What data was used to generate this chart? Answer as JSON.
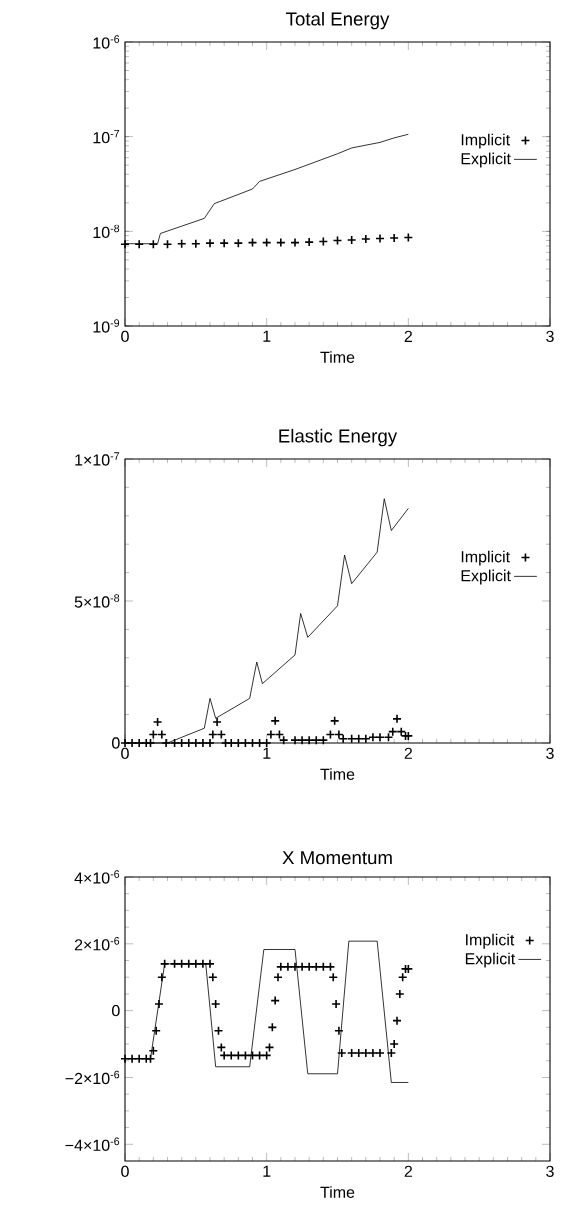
{
  "chart_data": [
    {
      "type": "line",
      "title": "Total Energy",
      "xlabel": "Time",
      "log": "y",
      "legend": "right",
      "grid": false,
      "xlim": [
        0,
        3
      ],
      "xticks": [
        0,
        1,
        2,
        3
      ],
      "ylim": [
        1e-09,
        1e-06
      ],
      "yticks": [
        {
          "value": 1e-09,
          "label": "10$^{-9}$"
        },
        {
          "value": 1e-08,
          "label": "10$^{-8}$"
        },
        {
          "value": 1e-07,
          "label": "10$^{-7}$"
        },
        {
          "value": 1e-06,
          "label": "10$^{-6}$"
        }
      ],
      "series": [
        {
          "name": "Implicit",
          "type": "scatter",
          "marker": "cross",
          "color": "#000000",
          "x": [
            0,
            0.1,
            0.2,
            0.3,
            0.4,
            0.5,
            0.6,
            0.7,
            0.8,
            0.9,
            1.0,
            1.1,
            1.2,
            1.3,
            1.4,
            1.5,
            1.6,
            1.7,
            1.8,
            1.9,
            2.0
          ],
          "values": [
            7.3e-09,
            7.3e-09,
            7.3e-09,
            7.3e-09,
            7.4e-09,
            7.4e-09,
            7.5e-09,
            7.5e-09,
            7.5e-09,
            7.6e-09,
            7.6e-09,
            7.6e-09,
            7.6e-09,
            7.7e-09,
            7.8e-09,
            8e-09,
            8.1e-09,
            8.3e-09,
            8.4e-09,
            8.5e-09,
            8.6e-09
          ]
        },
        {
          "name": "Explicit",
          "type": "line",
          "marker": "none",
          "line_style": "solid",
          "color": "#000000",
          "x": [
            0,
            0.23,
            0.25,
            0.56,
            0.63,
            0.9,
            0.95,
            1.2,
            1.5,
            1.6,
            1.8,
            1.9,
            2.0
          ],
          "values": [
            7.4e-09,
            7.4e-09,
            9.5e-09,
            1.37e-08,
            1.96e-08,
            2.8e-08,
            3.37e-08,
            4.5e-08,
            6.6e-08,
            7.6e-08,
            8.7e-08,
            9.7e-08,
            1.06e-07
          ]
        }
      ]
    },
    {
      "type": "line",
      "title": "Elastic Energy",
      "xlabel": "Time",
      "legend": "right",
      "grid": false,
      "xlim": [
        0,
        3
      ],
      "xticks": [
        0,
        1,
        2,
        3
      ],
      "ylim": [
        0,
        1e-07
      ],
      "yticks": [
        {
          "value": 0,
          "label": "0"
        },
        {
          "value": 5e-08,
          "label": "5×10$^{-8}$"
        },
        {
          "value": 1e-07,
          "label": "1×10$^{-7}$"
        }
      ],
      "series": [
        {
          "name": "Implicit",
          "type": "scatter",
          "marker": "cross",
          "color": "#000000",
          "x": [
            0,
            0.05,
            0.1,
            0.15,
            0.18,
            0.2,
            0.23,
            0.26,
            0.29,
            0.35,
            0.4,
            0.45,
            0.5,
            0.55,
            0.6,
            0.62,
            0.65,
            0.68,
            0.71,
            0.75,
            0.8,
            0.85,
            0.9,
            0.95,
            1.0,
            1.03,
            1.06,
            1.09,
            1.12,
            1.2,
            1.25,
            1.3,
            1.35,
            1.4,
            1.45,
            1.48,
            1.51,
            1.54,
            1.6,
            1.65,
            1.7,
            1.75,
            1.8,
            1.86,
            1.89,
            1.92,
            1.95,
            1.98,
            2.0
          ],
          "values": [
            0,
            0,
            0,
            0,
            0,
            3e-09,
            7.4e-09,
            3e-09,
            0,
            0,
            0,
            0,
            0,
            0,
            0,
            3e-09,
            7.4e-09,
            3e-09,
            0,
            0,
            0,
            0,
            0,
            0,
            0,
            3e-09,
            7.8e-09,
            3e-09,
            1e-09,
            1e-09,
            1e-09,
            1e-09,
            1e-09,
            1e-09,
            3e-09,
            7.8e-09,
            3e-09,
            1.5e-09,
            1.5e-09,
            1.5e-09,
            1.5e-09,
            2e-09,
            2e-09,
            2e-09,
            4e-09,
            8.5e-09,
            4e-09,
            2.5e-09,
            2.5e-09
          ]
        },
        {
          "name": "Explicit",
          "type": "line",
          "marker": "none",
          "line_style": "solid",
          "color": "#000000",
          "x": [
            0,
            0.3,
            0.56,
            0.6,
            0.64,
            0.88,
            0.93,
            0.97,
            1.2,
            1.24,
            1.29,
            1.5,
            1.55,
            1.6,
            1.78,
            1.83,
            1.88,
            2.0
          ],
          "values": [
            0,
            0,
            5.2e-09,
            1.57e-08,
            8.7e-09,
            1.57e-08,
            2.85e-08,
            2.09e-08,
            3.1e-08,
            4.56e-08,
            3.72e-08,
            4.83e-08,
            6.62e-08,
            5.61e-08,
            6.72e-08,
            8.6e-08,
            7.48e-08,
            8.26e-08
          ]
        }
      ]
    },
    {
      "type": "line",
      "title": "X Momentum",
      "xlabel": "Time",
      "legend": "top right",
      "grid": false,
      "xlim": [
        0,
        3
      ],
      "xticks": [
        0,
        1,
        2,
        3
      ],
      "ylim": [
        -4.5e-06,
        4e-06
      ],
      "yticks": [
        {
          "value": -4e-06,
          "label": "−4×10$^{-6}$"
        },
        {
          "value": -2e-06,
          "label": "−2×10$^{-6}$"
        },
        {
          "value": 0,
          "label": "0"
        },
        {
          "value": 2e-06,
          "label": "2×10$^{-6}$"
        },
        {
          "value": 4e-06,
          "label": "4×10$^{-6}$"
        }
      ],
      "series": [
        {
          "name": "Implicit",
          "type": "scatter",
          "marker": "cross",
          "color": "#000000",
          "x": [
            0,
            0.05,
            0.1,
            0.15,
            0.18,
            0.2,
            0.22,
            0.24,
            0.26,
            0.28,
            0.35,
            0.4,
            0.45,
            0.5,
            0.55,
            0.6,
            0.62,
            0.64,
            0.66,
            0.68,
            0.7,
            0.75,
            0.8,
            0.85,
            0.9,
            0.95,
            1.0,
            1.02,
            1.04,
            1.06,
            1.08,
            1.1,
            1.15,
            1.2,
            1.25,
            1.3,
            1.35,
            1.4,
            1.45,
            1.47,
            1.49,
            1.51,
            1.53,
            1.6,
            1.65,
            1.7,
            1.75,
            1.8,
            1.88,
            1.9,
            1.92,
            1.94,
            1.96,
            1.98,
            2.0
          ],
          "values": [
            -1.44e-06,
            -1.44e-06,
            -1.44e-06,
            -1.44e-06,
            -1.44e-06,
            -1.2e-06,
            -6e-07,
            2e-07,
            1e-06,
            1.4e-06,
            1.4e-06,
            1.4e-06,
            1.4e-06,
            1.4e-06,
            1.4e-06,
            1.4e-06,
            1e-06,
            2e-07,
            -6e-07,
            -1.1e-06,
            -1.34e-06,
            -1.34e-06,
            -1.34e-06,
            -1.34e-06,
            -1.34e-06,
            -1.34e-06,
            -1.34e-06,
            -1.1e-06,
            -5e-07,
            3e-07,
            1e-06,
            1.31e-06,
            1.31e-06,
            1.31e-06,
            1.31e-06,
            1.31e-06,
            1.31e-06,
            1.31e-06,
            1.31e-06,
            1e-06,
            2e-07,
            -6e-07,
            -1.27e-06,
            -1.27e-06,
            -1.27e-06,
            -1.27e-06,
            -1.27e-06,
            -1.27e-06,
            -1.27e-06,
            -1e-06,
            -3e-07,
            5e-07,
            1e-06,
            1.25e-06,
            1.25e-06
          ]
        },
        {
          "name": "Explicit",
          "type": "line",
          "marker": "none",
          "line_style": "solid",
          "color": "#000000",
          "x": [
            0,
            0.18,
            0.28,
            0.57,
            0.64,
            0.88,
            0.98,
            1.2,
            1.29,
            1.5,
            1.58,
            1.78,
            1.88,
            2.0
          ],
          "values": [
            -1.44e-06,
            -1.44e-06,
            1.4e-06,
            1.4e-06,
            -1.68e-06,
            -1.68e-06,
            1.83e-06,
            1.83e-06,
            -1.89e-06,
            -1.89e-06,
            2.08e-06,
            2.08e-06,
            -2.15e-06,
            -2.15e-06
          ]
        }
      ]
    }
  ]
}
